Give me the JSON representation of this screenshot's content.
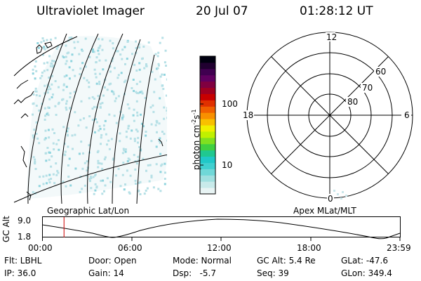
{
  "header": {
    "title": "Ultraviolet Imager",
    "date": "20 Jul 07",
    "time": "01:28:12 UT"
  },
  "colorbar": {
    "unit_label": "photon cm",
    "unit_sup1": "-2",
    "unit_mid": "s",
    "unit_sup2": "-1",
    "tick_100": "100",
    "tick_10": "10",
    "colors": [
      "#e8f4f4",
      "#c8eaea",
      "#a0e0e0",
      "#70d8d8",
      "#40d0d0",
      "#20c8c8",
      "#20c890",
      "#40d040",
      "#80e020",
      "#c0f000",
      "#f0f000",
      "#f8c000",
      "#f89000",
      "#f06000",
      "#e03000",
      "#c80000",
      "#a00020",
      "#800040",
      "#600060",
      "#400050",
      "#200030",
      "#000010"
    ]
  },
  "polar": {
    "label_12": "12",
    "label_18": "18",
    "label_6": "6",
    "label_0": "0",
    "label_60": "60",
    "label_70": "70",
    "label_80": "80"
  },
  "projections": {
    "left": "Geographic Lat/Lon",
    "right": "Apex MLat/MLT"
  },
  "altitude_plot": {
    "ylabel": "GC Alt",
    "ymax": "9.0",
    "ymin": "1.8",
    "xticks": [
      "00:00",
      "06:00",
      "12:00",
      "18:00",
      "23:59"
    ],
    "current_time_hours": 1.47
  },
  "info": {
    "flt": "Flt: LBHL",
    "ip": "IP: 36.0",
    "door": "Door: Open",
    "gain": "Gain: 14",
    "mode": "Mode: Normal",
    "dsp": "Dsp:   -5.7",
    "gc_alt": "GC Alt: 5.4 Re",
    "seq": "Seq: 39",
    "glat": "GLat: -47.6",
    "glon": "GLon: 349.4"
  }
}
